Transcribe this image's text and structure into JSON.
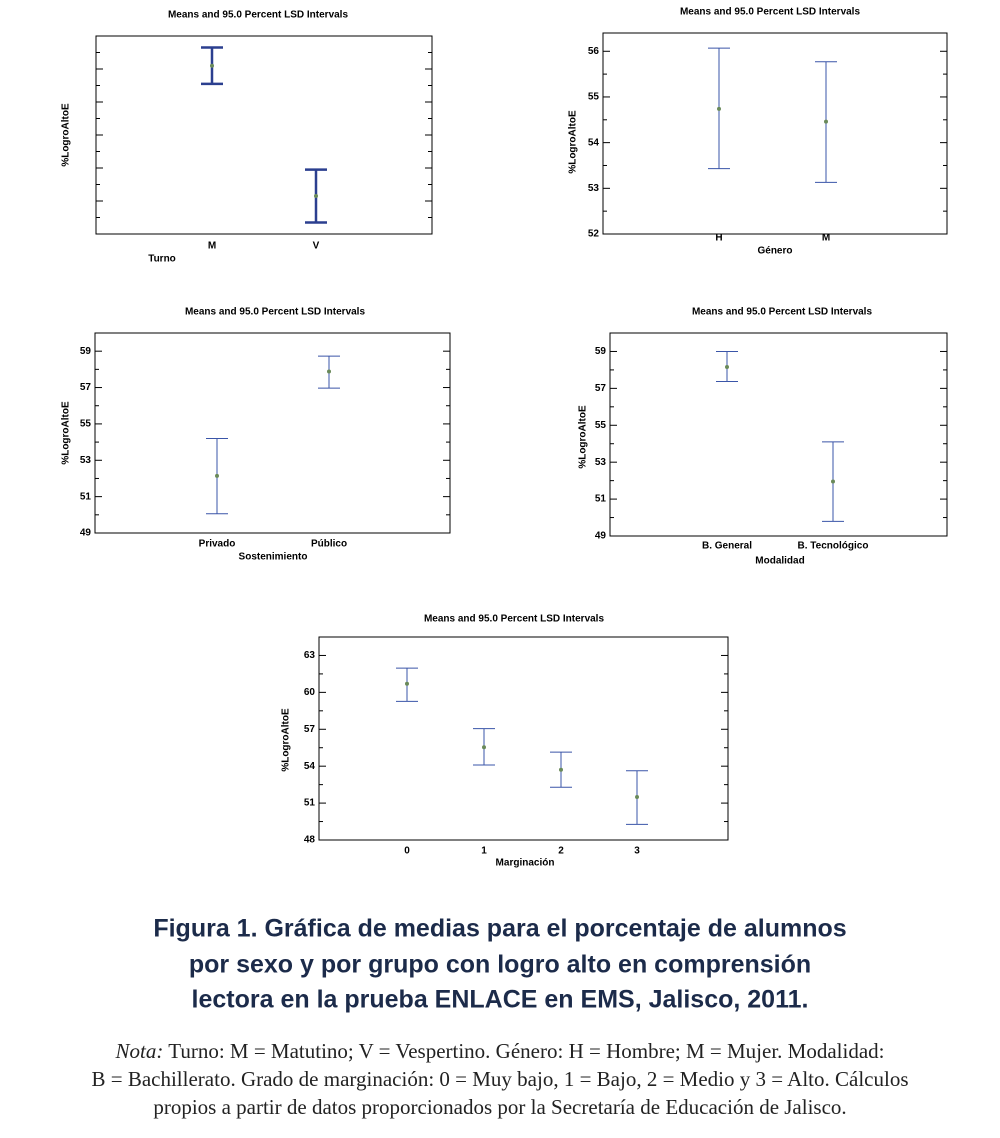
{
  "chart_data": [
    {
      "type": "errorbar",
      "title": "Means and 95.0 Percent LSD Intervals",
      "y_label": "%LogroAltoE",
      "x_label": "Turno",
      "categories": [
        "M",
        "V"
      ],
      "values": [
        58.2,
        50.3
      ],
      "lower": [
        57.1,
        48.7
      ],
      "upper": [
        59.3,
        51.9
      ],
      "ylim": [
        48,
        60
      ],
      "color": "#2b3f8f",
      "point_color": "#6a8a5a"
    },
    {
      "type": "errorbar",
      "title": "Means and 95.0 Percent LSD Intervals",
      "y_label": "%LogroAltoE",
      "x_label": "Género",
      "categories": [
        "H",
        "M"
      ],
      "values": [
        54.74,
        54.46
      ],
      "lower": [
        53.43,
        53.13
      ],
      "upper": [
        56.07,
        55.77
      ],
      "ylim": [
        52,
        56.4
      ],
      "yticks": [
        52,
        53,
        54,
        55,
        56
      ],
      "color": "#3a55a8",
      "point_color": "#6a8a5a"
    },
    {
      "type": "errorbar",
      "title": "Means and 95.0 Percent LSD Intervals",
      "y_label": "%LogroAltoE",
      "x_label": "Sostenimiento",
      "categories": [
        "Privado",
        "Público"
      ],
      "values": [
        52.14,
        57.88
      ],
      "lower": [
        50.06,
        56.97
      ],
      "upper": [
        54.2,
        58.73
      ],
      "ylim": [
        49,
        60
      ],
      "yticks": [
        49,
        51,
        53,
        55,
        57,
        59
      ],
      "color": "#3a55a8",
      "point_color": "#6a8a5a"
    },
    {
      "type": "errorbar",
      "title": "Means and 95.0 Percent LSD Intervals",
      "y_label": "%LogroAltoE",
      "x_label": "Modalidad",
      "categories": [
        "B. General",
        "B. Tecnológico"
      ],
      "values": [
        58.16,
        51.95
      ],
      "lower": [
        57.37,
        49.79
      ],
      "upper": [
        59.0,
        54.1
      ],
      "ylim": [
        49,
        60
      ],
      "yticks": [
        49,
        51,
        53,
        55,
        57,
        59
      ],
      "color": "#3a55a8",
      "point_color": "#6a8a5a"
    },
    {
      "type": "errorbar",
      "title": "Means and 95.0 Percent LSD Intervals",
      "y_label": "%LogroAltoE",
      "x_label": "Marginación",
      "categories": [
        "0",
        "1",
        "2",
        "3"
      ],
      "values": [
        60.7,
        55.54,
        53.71,
        51.49
      ],
      "lower": [
        59.27,
        54.1,
        52.29,
        49.27
      ],
      "upper": [
        61.97,
        57.05,
        55.14,
        53.63
      ],
      "ylim": [
        48,
        64.5
      ],
      "yticks": [
        48,
        51,
        54,
        57,
        60,
        63
      ],
      "color": "#3a55a8",
      "point_color": "#6a8a5a"
    }
  ],
  "caption": [
    "Figura 1. Gráfica de medias para el porcentaje de alumnos",
    "por sexo y por grupo con logro alto en comprensión",
    "lectora en la prueba ENLACE en EMS, Jalisco, 2011."
  ],
  "note_label": "Nota:",
  "note": [
    "Turno: M = Matutino; V = Vespertino. Género: H = Hombre; M = Mujer. Modalidad:",
    "B = Bachillerato. Grado de marginación: 0 = Muy bajo, 1 = Bajo, 2 = Medio y 3 = Alto. Cálculos",
    "propios a partir de datos proporcionados por la Secretaría de Educación de Jalisco."
  ]
}
